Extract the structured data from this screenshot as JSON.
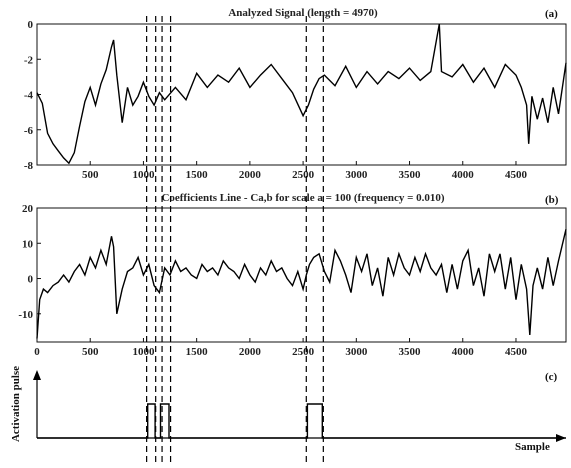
{
  "chart_data": [
    {
      "type": "line",
      "panel": "(a)",
      "title": "Analyzed Signal  (length = 4970)",
      "xlim": [
        0,
        4970
      ],
      "ylim": [
        -8,
        0
      ],
      "xticks": [
        500,
        1000,
        1500,
        2000,
        2500,
        3000,
        3500,
        4000,
        4500
      ],
      "yticks": [
        0,
        -2,
        -4,
        -6,
        -8
      ],
      "series": [
        {
          "x": [
            0,
            50,
            100,
            150,
            200,
            250,
            300,
            350,
            400,
            450,
            500,
            550,
            600,
            650,
            700,
            720,
            750,
            800,
            850,
            900,
            950,
            1000,
            1050,
            1100,
            1150,
            1200,
            1300,
            1400,
            1500,
            1600,
            1700,
            1800,
            1900,
            2000,
            2100,
            2200,
            2300,
            2400,
            2500,
            2550,
            2600,
            2650,
            2700,
            2800,
            2900,
            3000,
            3100,
            3200,
            3300,
            3400,
            3500,
            3600,
            3700,
            3780,
            3800,
            3900,
            4000,
            4100,
            4200,
            4300,
            4400,
            4500,
            4550,
            4600,
            4620,
            4650,
            4700,
            4750,
            4800,
            4850,
            4900,
            4970
          ],
          "y": [
            -3.9,
            -4.5,
            -6.2,
            -6.8,
            -7.2,
            -7.6,
            -7.9,
            -7.3,
            -5.8,
            -4.4,
            -3.6,
            -4.6,
            -3.4,
            -2.6,
            -1.3,
            -0.9,
            -2.9,
            -5.6,
            -3.6,
            -4.6,
            -4.1,
            -3.3,
            -4.1,
            -4.6,
            -3.9,
            -4.3,
            -3.6,
            -4.3,
            -2.8,
            -3.6,
            -2.9,
            -3.3,
            -2.5,
            -3.6,
            -2.9,
            -2.3,
            -3.1,
            -3.9,
            -5.2,
            -4.6,
            -3.7,
            -3.1,
            -2.9,
            -3.5,
            -2.4,
            -3.6,
            -2.7,
            -3.4,
            -2.7,
            -3.1,
            -2.5,
            -3.2,
            -2.7,
            0.0,
            -2.7,
            -3.0,
            -2.3,
            -3.3,
            -2.5,
            -3.6,
            -2.3,
            -2.9,
            -3.6,
            -4.6,
            -6.8,
            -4.1,
            -5.4,
            -4.2,
            -5.6,
            -3.6,
            -5.1,
            -2.2
          ]
        }
      ]
    },
    {
      "type": "line",
      "panel": "(b)",
      "title": "Coefficients Line - Ca,b for scale a = 100  (frequency =   0.010)",
      "xlim": [
        0,
        4970
      ],
      "ylim": [
        -18,
        20
      ],
      "xticks": [
        0,
        500,
        1000,
        1500,
        2000,
        2500,
        3000,
        3500,
        4000,
        4500
      ],
      "yticks": [
        20,
        10,
        0,
        -10
      ],
      "series": [
        {
          "x": [
            0,
            25,
            60,
            100,
            150,
            200,
            250,
            300,
            350,
            400,
            450,
            500,
            550,
            600,
            650,
            700,
            720,
            750,
            800,
            850,
            900,
            950,
            1000,
            1050,
            1100,
            1150,
            1200,
            1250,
            1300,
            1350,
            1400,
            1450,
            1500,
            1550,
            1600,
            1650,
            1700,
            1750,
            1800,
            1850,
            1900,
            1950,
            2000,
            2050,
            2100,
            2150,
            2200,
            2250,
            2300,
            2350,
            2400,
            2450,
            2500,
            2530,
            2560,
            2600,
            2650,
            2700,
            2750,
            2800,
            2850,
            2900,
            2950,
            3000,
            3050,
            3100,
            3150,
            3200,
            3250,
            3300,
            3350,
            3400,
            3450,
            3500,
            3550,
            3600,
            3650,
            3700,
            3750,
            3800,
            3850,
            3900,
            3950,
            4000,
            4050,
            4100,
            4150,
            4200,
            4250,
            4300,
            4350,
            4400,
            4450,
            4500,
            4550,
            4600,
            4630,
            4660,
            4700,
            4750,
            4800,
            4850,
            4900,
            4970
          ],
          "y": [
            -17,
            -6,
            -3,
            -4,
            -2,
            -1,
            1,
            -1,
            2,
            4,
            1,
            6,
            3,
            8,
            4,
            12,
            9,
            -10,
            -3,
            2,
            3,
            6,
            1,
            4,
            -2,
            -4,
            3,
            1,
            5,
            2,
            3,
            1,
            0,
            4,
            2,
            3,
            1,
            5,
            3,
            2,
            0,
            4,
            1,
            -1,
            3,
            1,
            5,
            2,
            3,
            0,
            -2,
            2,
            -3,
            1,
            4,
            6,
            7,
            2,
            -1,
            8,
            5,
            1,
            -4,
            6,
            2,
            7,
            -2,
            3,
            -5,
            6,
            1,
            7,
            3,
            1,
            6,
            2,
            7,
            3,
            1,
            4,
            -4,
            4,
            -3,
            5,
            8,
            -2,
            3,
            -5,
            7,
            2,
            7,
            -3,
            6,
            -6,
            4,
            -3,
            -16,
            -2,
            3,
            -3,
            6,
            -2,
            5,
            14
          ]
        }
      ]
    },
    {
      "type": "line",
      "panel": "(c)",
      "ylabel": "Activation pulse",
      "xlabel": "Sample",
      "xlim": [
        0,
        4970
      ],
      "ylim": [
        0,
        1
      ],
      "series": [
        {
          "x": [
            0,
            1040,
            1040,
            1110,
            1110,
            1160,
            1160,
            1240,
            1240,
            2540,
            2540,
            2680,
            2680,
            4970
          ],
          "y": [
            0,
            0,
            1,
            1,
            0,
            0,
            1,
            1,
            0,
            0,
            1,
            1,
            0,
            0
          ]
        }
      ]
    }
  ],
  "markers": {
    "sample_positions": [
      1030,
      1115,
      1175,
      1255,
      2530,
      2690
    ]
  }
}
